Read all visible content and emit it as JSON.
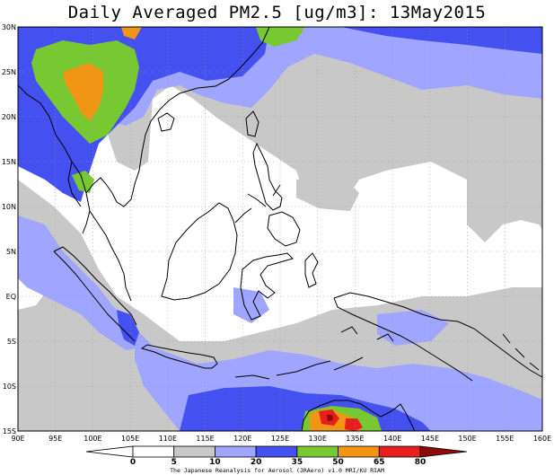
{
  "title": "Daily Averaged PM2.5 [ug/m3]: 13May2015",
  "credit": "The Japanese Reanalysis for Aerosol (JRAero) v1.0 MRI/KU RIAM",
  "lat_labels": [
    "30N",
    "25N",
    "20N",
    "15N",
    "10N",
    "5N",
    "EQ",
    "5S",
    "10S",
    "15S"
  ],
  "lon_labels": [
    "90E",
    "95E",
    "100E",
    "105E",
    "110E",
    "115E",
    "120E",
    "125E",
    "130E",
    "135E",
    "140E",
    "145E",
    "150E",
    "155E",
    "160E"
  ],
  "colorbar": {
    "labels": [
      "0",
      "5",
      "10",
      "20",
      "35",
      "50",
      "65",
      "80"
    ],
    "colors": [
      "#ffffff",
      "#c8c8c8",
      "#a0a6ff",
      "#4450f0",
      "#78c832",
      "#f09614",
      "#e61e1e",
      "#8c0a0a"
    ]
  }
}
